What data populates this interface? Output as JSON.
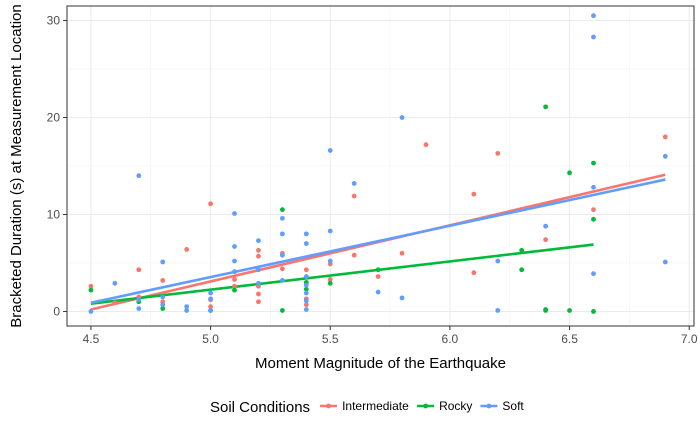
{
  "chart_data": {
    "type": "scatter",
    "xlabel": "Moment Magnitude of the Earthquake",
    "ylabel": "Bracketed Duration (s) at Measurement Location",
    "xlim": [
      4.4,
      7.02
    ],
    "ylim": [
      -1.5,
      31.5
    ],
    "x_ticks": [
      4.5,
      5.0,
      5.5,
      6.0,
      6.5,
      7.0
    ],
    "x_tick_labels": [
      "4.5",
      "5.0",
      "5.5",
      "6.0",
      "6.5",
      "7.0"
    ],
    "y_ticks": [
      0,
      10,
      20,
      30
    ],
    "y_tick_labels": [
      "0",
      "10",
      "20",
      "30"
    ],
    "grid": true,
    "legend": {
      "title": "Soil Conditions",
      "position": "bottom"
    },
    "series": [
      {
        "name": "Intermediate",
        "color": "#F8766D",
        "trend": {
          "x": [
            4.5,
            6.9
          ],
          "y": [
            0.2,
            14.1
          ]
        },
        "points": [
          [
            4.5,
            2.6
          ],
          [
            4.6,
            0.9
          ],
          [
            4.7,
            4.3
          ],
          [
            4.7,
            1.5
          ],
          [
            4.8,
            3.2
          ],
          [
            4.8,
            1.0
          ],
          [
            4.9,
            6.4
          ],
          [
            5.0,
            11.1
          ],
          [
            5.0,
            1.2
          ],
          [
            5.0,
            0.5
          ],
          [
            5.1,
            3.3
          ],
          [
            5.1,
            2.6
          ],
          [
            5.2,
            6.3
          ],
          [
            5.2,
            5.7
          ],
          [
            5.2,
            2.6
          ],
          [
            5.2,
            1.8
          ],
          [
            5.2,
            1.0
          ],
          [
            5.3,
            4.4
          ],
          [
            5.3,
            6.0
          ],
          [
            5.4,
            4.3
          ],
          [
            5.4,
            2.9
          ],
          [
            5.4,
            1.3
          ],
          [
            5.4,
            0.7
          ],
          [
            5.5,
            4.9
          ],
          [
            5.5,
            3.3
          ],
          [
            5.6,
            5.8
          ],
          [
            5.6,
            11.9
          ],
          [
            5.7,
            3.6
          ],
          [
            5.8,
            6.0
          ],
          [
            5.9,
            17.2
          ],
          [
            6.1,
            12.1
          ],
          [
            6.1,
            4.0
          ],
          [
            6.2,
            16.3
          ],
          [
            6.4,
            7.4
          ],
          [
            6.6,
            10.5
          ],
          [
            6.9,
            18.0
          ]
        ]
      },
      {
        "name": "Rocky",
        "color": "#00BA38",
        "trend": {
          "x": [
            4.5,
            6.6
          ],
          "y": [
            0.8,
            6.9
          ]
        },
        "points": [
          [
            4.5,
            2.2
          ],
          [
            4.7,
            1.0
          ],
          [
            4.8,
            0.3
          ],
          [
            5.0,
            0.1
          ],
          [
            5.1,
            2.2
          ],
          [
            5.3,
            10.5
          ],
          [
            5.3,
            0.1
          ],
          [
            5.4,
            3.0
          ],
          [
            5.4,
            2.3
          ],
          [
            5.5,
            2.9
          ],
          [
            5.7,
            4.3
          ],
          [
            6.3,
            4.3
          ],
          [
            6.3,
            6.3
          ],
          [
            6.4,
            21.1
          ],
          [
            6.4,
            0.2
          ],
          [
            6.4,
            0.1
          ],
          [
            6.5,
            14.3
          ],
          [
            6.5,
            0.1
          ],
          [
            6.6,
            15.3
          ],
          [
            6.6,
            9.5
          ],
          [
            6.6,
            0.0
          ]
        ]
      },
      {
        "name": "Soft",
        "color": "#619CFF",
        "trend": {
          "x": [
            4.5,
            6.9
          ],
          "y": [
            0.9,
            13.6
          ]
        },
        "points": [
          [
            4.5,
            0.0
          ],
          [
            4.6,
            2.9
          ],
          [
            4.7,
            14.0
          ],
          [
            4.7,
            1.2
          ],
          [
            4.7,
            0.3
          ],
          [
            4.8,
            5.1
          ],
          [
            4.8,
            1.5
          ],
          [
            4.8,
            0.7
          ],
          [
            4.9,
            0.5
          ],
          [
            4.9,
            0.1
          ],
          [
            5.0,
            1.9
          ],
          [
            5.0,
            1.3
          ],
          [
            5.0,
            0.1
          ],
          [
            5.1,
            10.1
          ],
          [
            5.1,
            6.7
          ],
          [
            5.1,
            5.2
          ],
          [
            5.1,
            4.1
          ],
          [
            5.2,
            7.3
          ],
          [
            5.2,
            4.3
          ],
          [
            5.2,
            2.9
          ],
          [
            5.3,
            9.6
          ],
          [
            5.3,
            8.0
          ],
          [
            5.3,
            5.8
          ],
          [
            5.3,
            3.2
          ],
          [
            5.4,
            8.0
          ],
          [
            5.4,
            7.0
          ],
          [
            5.4,
            3.6
          ],
          [
            5.4,
            2.7
          ],
          [
            5.4,
            1.9
          ],
          [
            5.4,
            1.1
          ],
          [
            5.4,
            0.2
          ],
          [
            5.5,
            16.6
          ],
          [
            5.5,
            8.3
          ],
          [
            5.5,
            5.2
          ],
          [
            5.6,
            13.2
          ],
          [
            5.7,
            2.0
          ],
          [
            5.8,
            20.0
          ],
          [
            5.8,
            1.4
          ],
          [
            6.2,
            5.2
          ],
          [
            6.2,
            0.1
          ],
          [
            6.4,
            8.8
          ],
          [
            6.6,
            30.5
          ],
          [
            6.6,
            28.3
          ],
          [
            6.6,
            12.8
          ],
          [
            6.6,
            3.9
          ],
          [
            6.9,
            16.0
          ],
          [
            6.9,
            5.1
          ]
        ]
      }
    ]
  }
}
